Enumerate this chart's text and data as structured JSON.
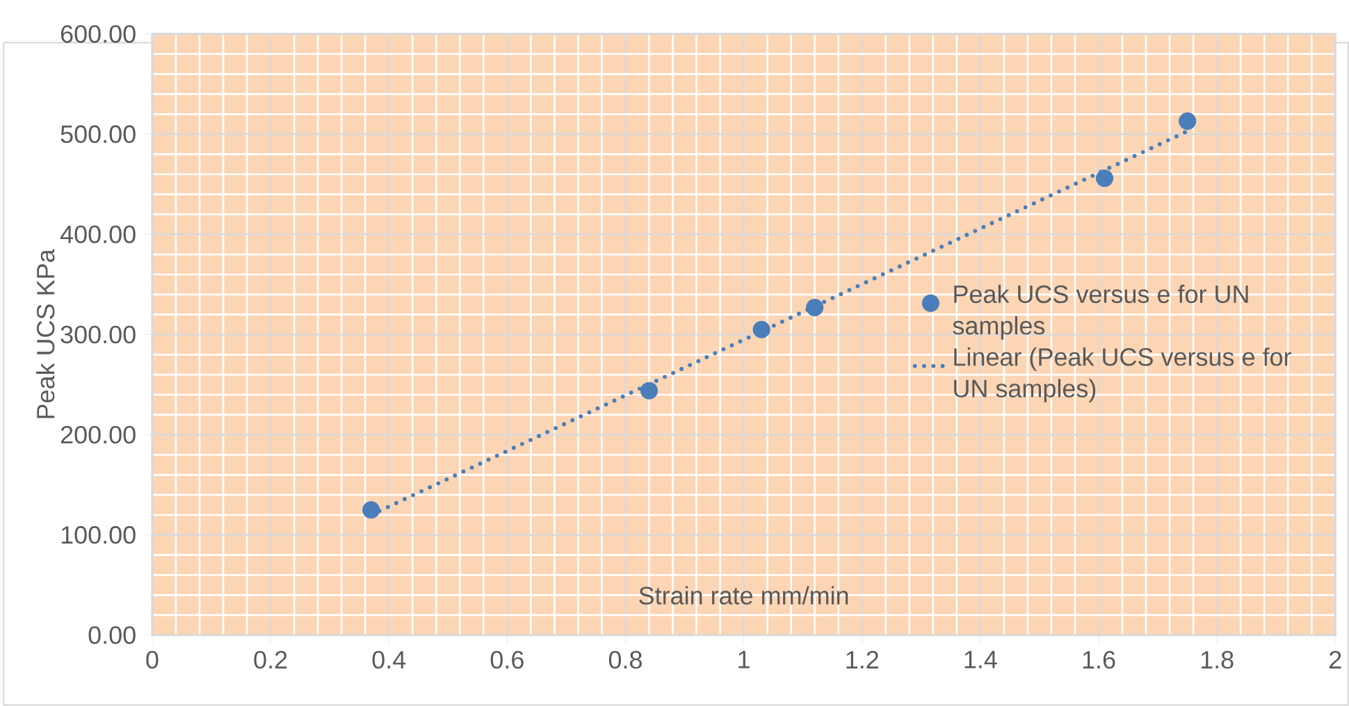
{
  "chart_data": {
    "type": "scatter",
    "xlabel": "Strain rate  mm/min",
    "ylabel": "Peak UCS KPa",
    "xlim": [
      0,
      2
    ],
    "ylim": [
      0,
      600
    ],
    "xticks": [
      0,
      0.2,
      0.4,
      0.6,
      0.8,
      1,
      1.2,
      1.4,
      1.6,
      1.8,
      2
    ],
    "yticks": [
      {
        "value": 0,
        "label": "0.00"
      },
      {
        "value": 100,
        "label": "100.00"
      },
      {
        "value": 200,
        "label": "200.00"
      },
      {
        "value": 300,
        "label": "300.00"
      },
      {
        "value": 400,
        "label": "400.00"
      },
      {
        "value": 500,
        "label": "500.00"
      },
      {
        "value": 600,
        "label": "600.00"
      }
    ],
    "grid": true,
    "legend": "right",
    "series": [
      {
        "name": "Peak UCS  versus e for UN samples",
        "color": "#4a7ebb",
        "marker": "circle",
        "x": [
          0.37,
          0.84,
          1.03,
          1.12,
          1.61,
          1.75
        ],
        "values": [
          125,
          244,
          305,
          327,
          456,
          513
        ]
      },
      {
        "name": "Linear (Peak UCS  versus e for UN samples)",
        "type": "line",
        "color": "#4a7ebb",
        "marker": "none",
        "line_style": "dotted",
        "x": [
          0.37,
          1.75
        ],
        "values": [
          120,
          503
        ]
      }
    ]
  }
}
